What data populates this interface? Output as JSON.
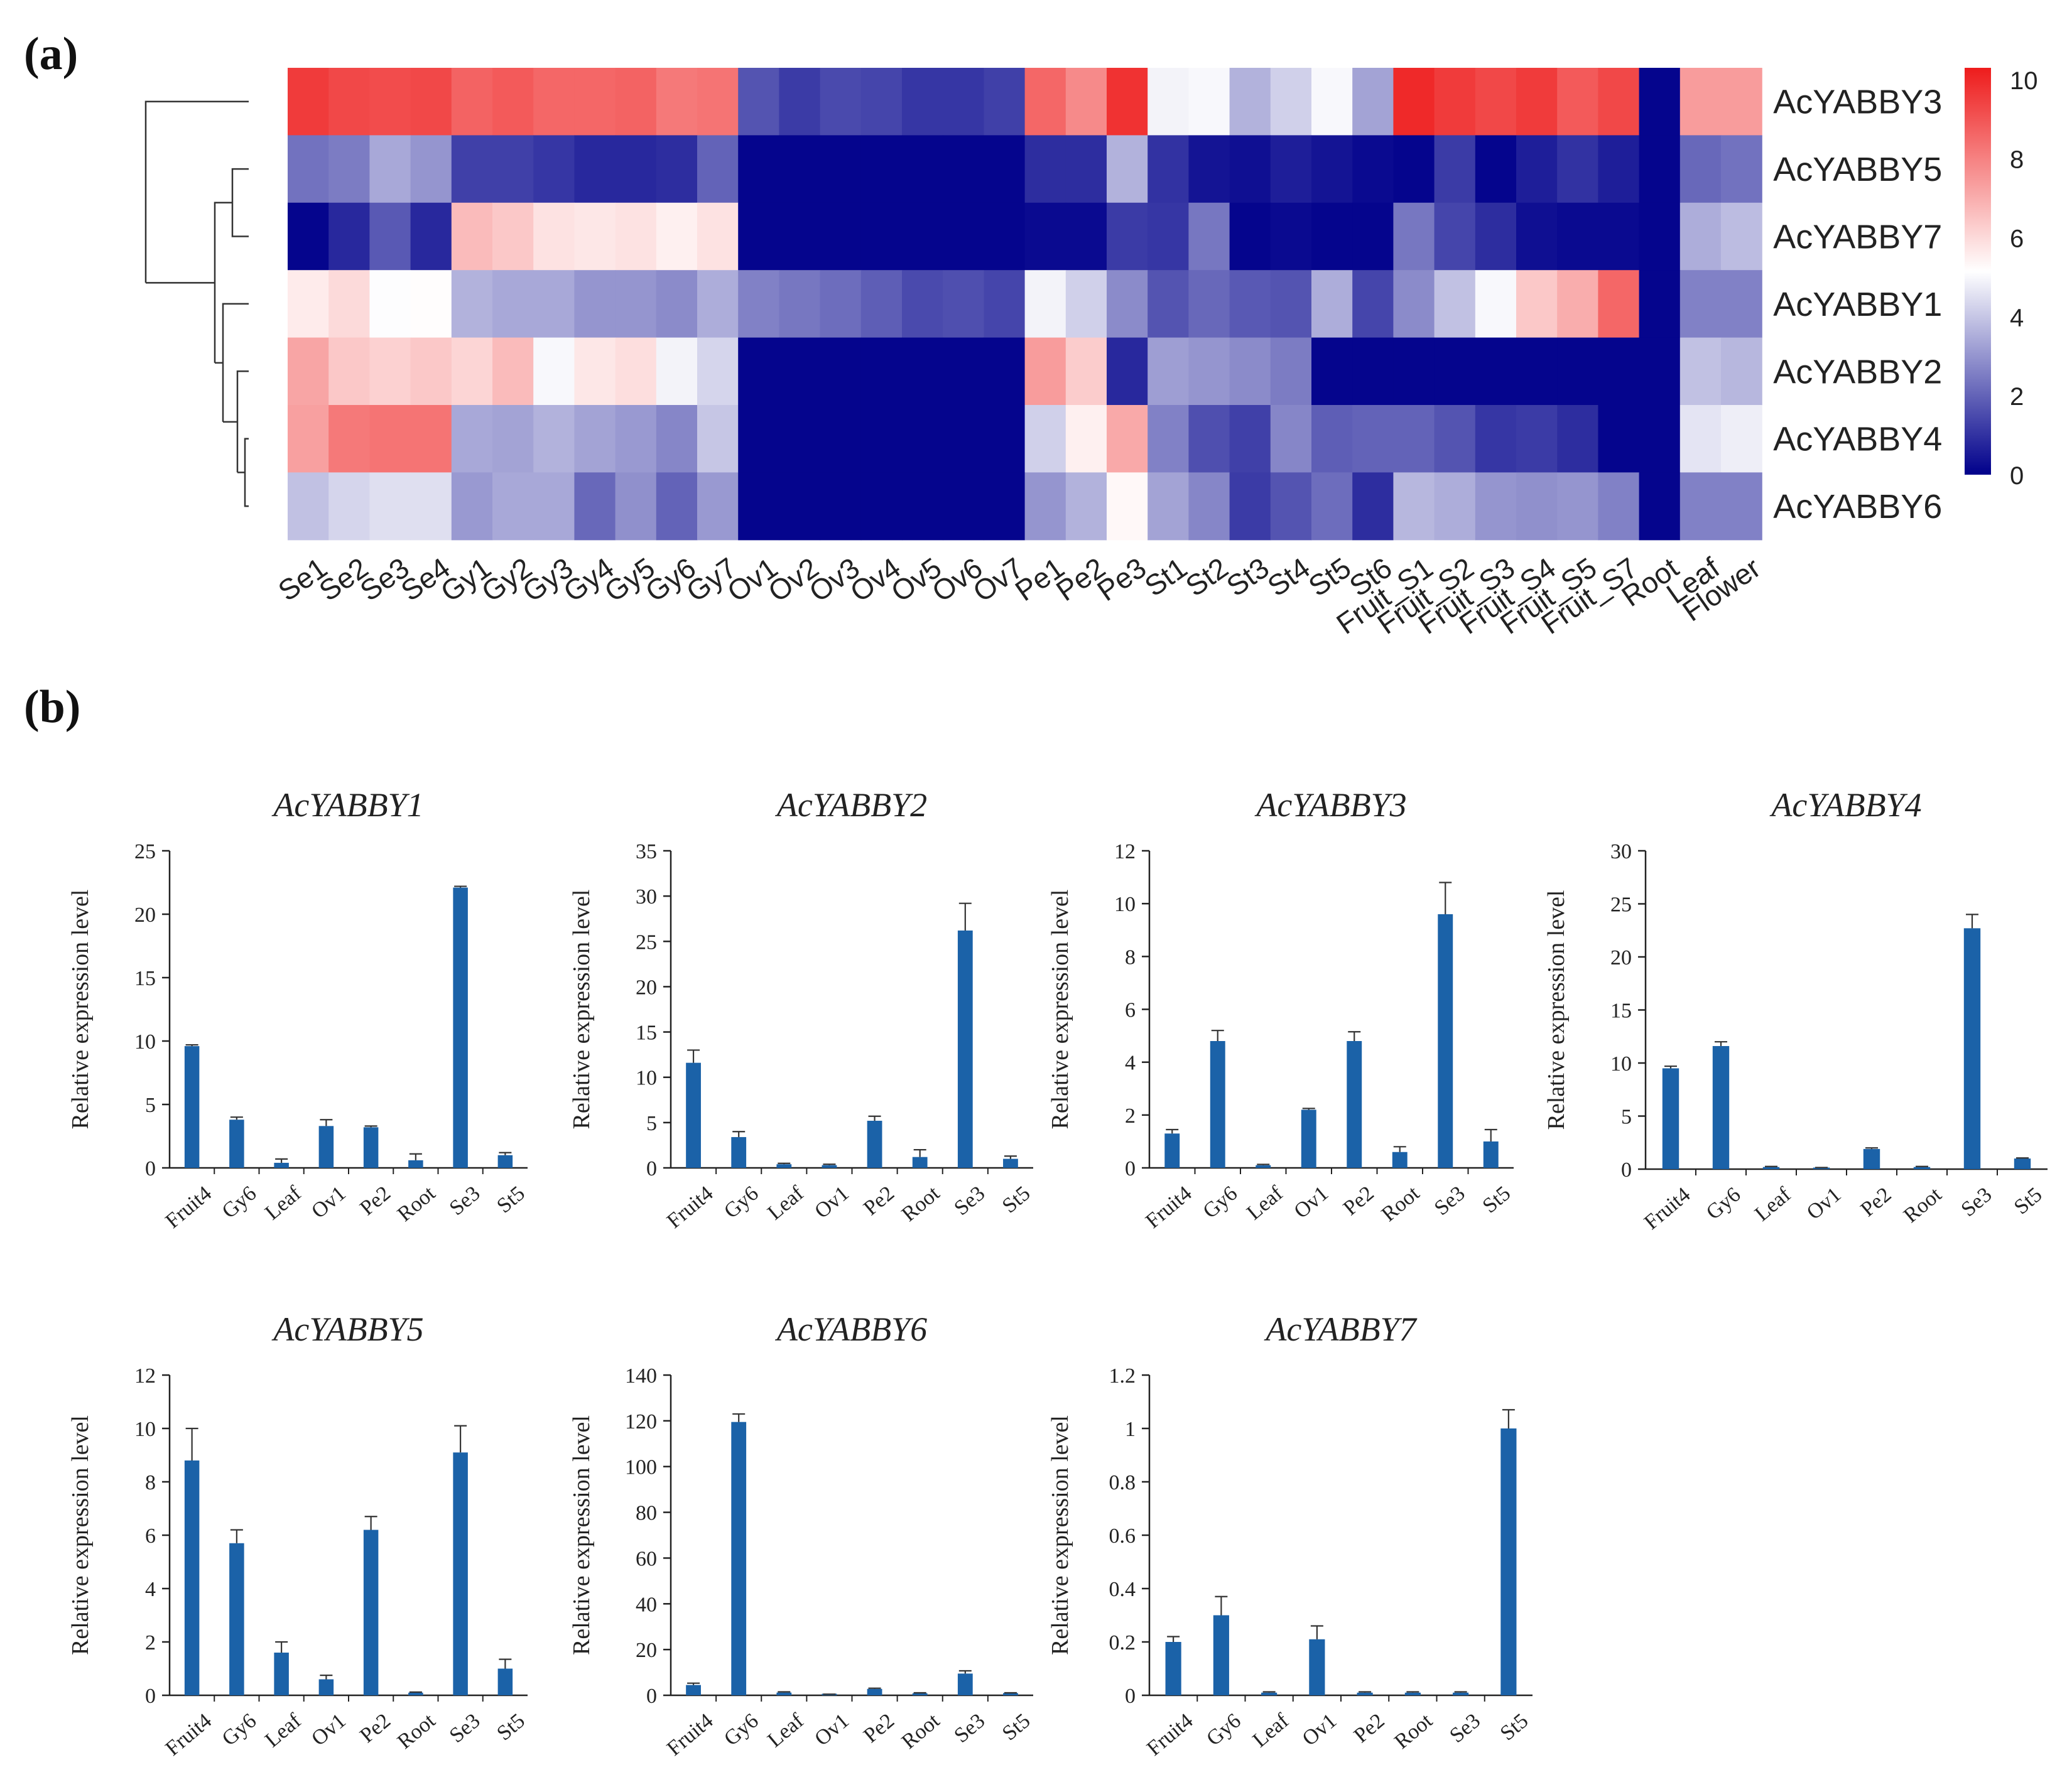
{
  "panel_labels": {
    "a": "(a)",
    "b": "(b)"
  },
  "chart_data": [
    {
      "type": "heatmap",
      "panel": "a",
      "title": "",
      "columns": [
        "Se1",
        "Se2",
        "Se3",
        "Se4",
        "Gy1",
        "Gy2",
        "Gy3",
        "Gy4",
        "Gy5",
        "Gy6",
        "Gy7",
        "Ov1",
        "Ov2",
        "Ov3",
        "Ov4",
        "Ov5",
        "Ov6",
        "Ov7",
        "Pe1",
        "Pe2",
        "Pe3",
        "St1",
        "St2",
        "St3",
        "St4",
        "St5",
        "St6",
        "Fruit_S1",
        "Fruit_S2",
        "Fruit_S3",
        "Fruit_S4",
        "Fruit_S5",
        "Fruit_S7",
        "Root",
        "Leaf",
        "Flower"
      ],
      "rows": [
        "AcYABBY3",
        "AcYABBY5",
        "AcYABBY7",
        "AcYABBY1",
        "AcYABBY2",
        "AcYABBY4",
        "AcYABBY6"
      ],
      "values": [
        [
          9.6,
          9.3,
          9.2,
          9.3,
          8.7,
          8.9,
          8.6,
          8.6,
          8.7,
          8.2,
          8.3,
          1.7,
          1.2,
          1.5,
          1.4,
          1.1,
          1.1,
          1.3,
          8.6,
          7.8,
          9.8,
          4.9,
          5,
          3.6,
          4.2,
          5,
          3.3,
          10,
          9.6,
          9.3,
          9.6,
          8.9,
          9.3,
          0.1,
          7.4,
          7.4
        ],
        [
          2.3,
          2.5,
          3.4,
          3,
          1.3,
          1.3,
          1.1,
          0.8,
          0.8,
          0.9,
          2,
          0.1,
          0.1,
          0.1,
          0.1,
          0.1,
          0.1,
          0.1,
          0.9,
          0.9,
          3.6,
          1,
          0.4,
          0.3,
          0.6,
          0.4,
          0.2,
          0.1,
          1.2,
          0.1,
          0.6,
          1,
          0.6,
          0.1,
          2.1,
          2.3
        ],
        [
          0.1,
          0.8,
          1.8,
          0.8,
          6.7,
          6.4,
          5.8,
          5.7,
          5.8,
          5.5,
          5.8,
          0.1,
          0.1,
          0.1,
          0.1,
          0.1,
          0.1,
          0.1,
          0.2,
          0.2,
          1.2,
          1.1,
          2.4,
          0.1,
          0.2,
          0.1,
          0.1,
          2.4,
          1.4,
          0.9,
          0.3,
          0.2,
          0.2,
          0.1,
          3.5,
          3.8
        ],
        [
          5.6,
          6,
          5.1,
          5.2,
          3.6,
          3.4,
          3.4,
          3,
          3,
          2.8,
          3.5,
          2.6,
          2.4,
          2.2,
          1.9,
          1.5,
          1.6,
          1.4,
          4.9,
          4.2,
          2.8,
          1.7,
          2.1,
          1.8,
          1.7,
          3.5,
          1.4,
          2.8,
          3.9,
          5,
          6.4,
          7,
          8.6,
          0.1,
          2.6,
          2.6
        ],
        [
          7.2,
          6.4,
          6.2,
          6.4,
          6.1,
          6.7,
          5,
          5.7,
          5.9,
          4.9,
          4.3,
          0.1,
          0.1,
          0.1,
          0.1,
          0.1,
          0.1,
          0.1,
          7.4,
          6.3,
          0.8,
          3.2,
          3,
          2.8,
          2.5,
          0.1,
          0.1,
          0.1,
          0.1,
          0.1,
          0.1,
          0.1,
          0.1,
          0.1,
          3.9,
          3.7
        ],
        [
          7.3,
          8.2,
          8.3,
          8.3,
          3.4,
          3.3,
          3.6,
          3.3,
          3.1,
          2.7,
          4,
          0.1,
          0.1,
          0.1,
          0.1,
          0.1,
          0.1,
          0.1,
          4.2,
          5.5,
          7.1,
          2.6,
          1.6,
          1.3,
          2.7,
          1.9,
          2,
          2,
          1.7,
          1.1,
          1.2,
          0.9,
          0.1,
          0.1,
          4.6,
          4.8
        ],
        [
          3.9,
          4.3,
          4.5,
          4.5,
          3.1,
          3.4,
          3.4,
          2.1,
          2.9,
          2,
          3.1,
          0.1,
          0.1,
          0.1,
          0.1,
          0.1,
          0.1,
          0.1,
          3,
          3.6,
          5.3,
          3.3,
          2.7,
          1.2,
          1.7,
          2.2,
          0.9,
          3.7,
          3.5,
          3,
          2.9,
          3,
          2.6,
          0.1,
          2.6,
          2.6
        ]
      ],
      "colorbar": {
        "ticks": [
          "0",
          "2",
          "4",
          "6",
          "8",
          "10"
        ],
        "range": [
          0,
          10.3
        ],
        "colors": [
          "#00008b",
          "#ffffff",
          "#ee1c1c"
        ]
      },
      "dendrogram": "rows"
    },
    {
      "type": "bar",
      "panel": "b",
      "title": "AcYABBY1",
      "ylabel": "Relative expression level",
      "categories": [
        "Fruit4",
        "Gy6",
        "Leaf",
        "Ov1",
        "Pe2",
        "Root",
        "Se3",
        "St5"
      ],
      "values": [
        9.6,
        3.8,
        0.4,
        3.3,
        3.2,
        0.6,
        22.1,
        1
      ],
      "errors": [
        0.1,
        0.2,
        0.3,
        0.5,
        0.1,
        0.5,
        0.1,
        0.2
      ],
      "ylim": [
        0,
        25
      ],
      "yticks": [
        "0",
        "5",
        "10",
        "15",
        "20",
        "25"
      ]
    },
    {
      "type": "bar",
      "panel": "b",
      "title": "AcYABBY2",
      "ylabel": "Relative expression level",
      "categories": [
        "Fruit4",
        "Gy6",
        "Leaf",
        "Ov1",
        "Pe2",
        "Root",
        "Se3",
        "St5"
      ],
      "values": [
        11.6,
        3.4,
        0.4,
        0.3,
        5.2,
        1.2,
        26.2,
        1
      ],
      "errors": [
        1.4,
        0.6,
        0.1,
        0.1,
        0.5,
        0.8,
        3,
        0.3
      ],
      "ylim": [
        0,
        35
      ],
      "yticks": [
        "0",
        "5",
        "10",
        "15",
        "20",
        "25",
        "30",
        "35"
      ]
    },
    {
      "type": "bar",
      "panel": "b",
      "title": "AcYABBY3",
      "ylabel": "Relative expression level",
      "categories": [
        "Fruit4",
        "Gy6",
        "Leaf",
        "Ov1",
        "Pe2",
        "Root",
        "Se3",
        "St5"
      ],
      "values": [
        1.3,
        4.8,
        0.1,
        2.2,
        4.8,
        0.6,
        9.6,
        1
      ],
      "errors": [
        0.15,
        0.4,
        0.03,
        0.05,
        0.35,
        0.2,
        1.2,
        0.45
      ],
      "ylim": [
        0,
        12
      ],
      "yticks": [
        "0",
        "2",
        "4",
        "6",
        "8",
        "10",
        "12"
      ]
    },
    {
      "type": "bar",
      "panel": "b",
      "title": "AcYABBY4",
      "ylabel": "Relative expression level",
      "categories": [
        "Fruit4",
        "Gy6",
        "Leaf",
        "Ov1",
        "Pe2",
        "Root",
        "Se3",
        "St5"
      ],
      "values": [
        9.5,
        11.6,
        0.2,
        0.1,
        1.9,
        0.2,
        22.7,
        1
      ],
      "errors": [
        0.2,
        0.4,
        0.05,
        0.05,
        0.1,
        0.05,
        1.3,
        0.05
      ],
      "ylim": [
        0,
        30
      ],
      "yticks": [
        "0",
        "5",
        "10",
        "15",
        "20",
        "25",
        "30"
      ]
    },
    {
      "type": "bar",
      "panel": "b",
      "title": "AcYABBY5",
      "ylabel": "Relative expression level",
      "categories": [
        "Fruit4",
        "Gy6",
        "Leaf",
        "Ov1",
        "Pe2",
        "Root",
        "Se3",
        "St5"
      ],
      "values": [
        8.8,
        5.7,
        1.6,
        0.6,
        6.2,
        0.1,
        9.1,
        1
      ],
      "errors": [
        1.2,
        0.5,
        0.4,
        0.15,
        0.5,
        0.02,
        1,
        0.35
      ],
      "ylim": [
        0,
        12
      ],
      "yticks": [
        "0",
        "2",
        "4",
        "6",
        "8",
        "10",
        "12"
      ]
    },
    {
      "type": "bar",
      "panel": "b",
      "title": "AcYABBY6",
      "ylabel": "Relative expression level",
      "categories": [
        "Fruit4",
        "Gy6",
        "Leaf",
        "Ov1",
        "Pe2",
        "Root",
        "Se3",
        "St5"
      ],
      "values": [
        4.5,
        119.5,
        1.2,
        0.4,
        2.8,
        0.9,
        9.5,
        1
      ],
      "errors": [
        0.8,
        3.5,
        0.3,
        0.1,
        0.3,
        0.2,
        1.2,
        0.1
      ],
      "ylim": [
        0,
        140
      ],
      "yticks": [
        "0",
        "20",
        "40",
        "60",
        "80",
        "100",
        "120",
        "140"
      ]
    },
    {
      "type": "bar",
      "panel": "b",
      "title": "AcYABBY7",
      "ylabel": "Relative expression level",
      "categories": [
        "Fruit4",
        "Gy6",
        "Leaf",
        "Ov1",
        "Pe2",
        "Root",
        "Se3",
        "St5"
      ],
      "values": [
        0.2,
        0.3,
        0.01,
        0.21,
        0.01,
        0.01,
        0.01,
        1
      ],
      "errors": [
        0.02,
        0.07,
        0.003,
        0.05,
        0.003,
        0.003,
        0.003,
        0.07
      ],
      "ylim": [
        0,
        1.2
      ],
      "yticks": [
        "0",
        "0.2",
        "0.4",
        "0.6",
        "0.8",
        "1",
        "1.2"
      ]
    }
  ]
}
